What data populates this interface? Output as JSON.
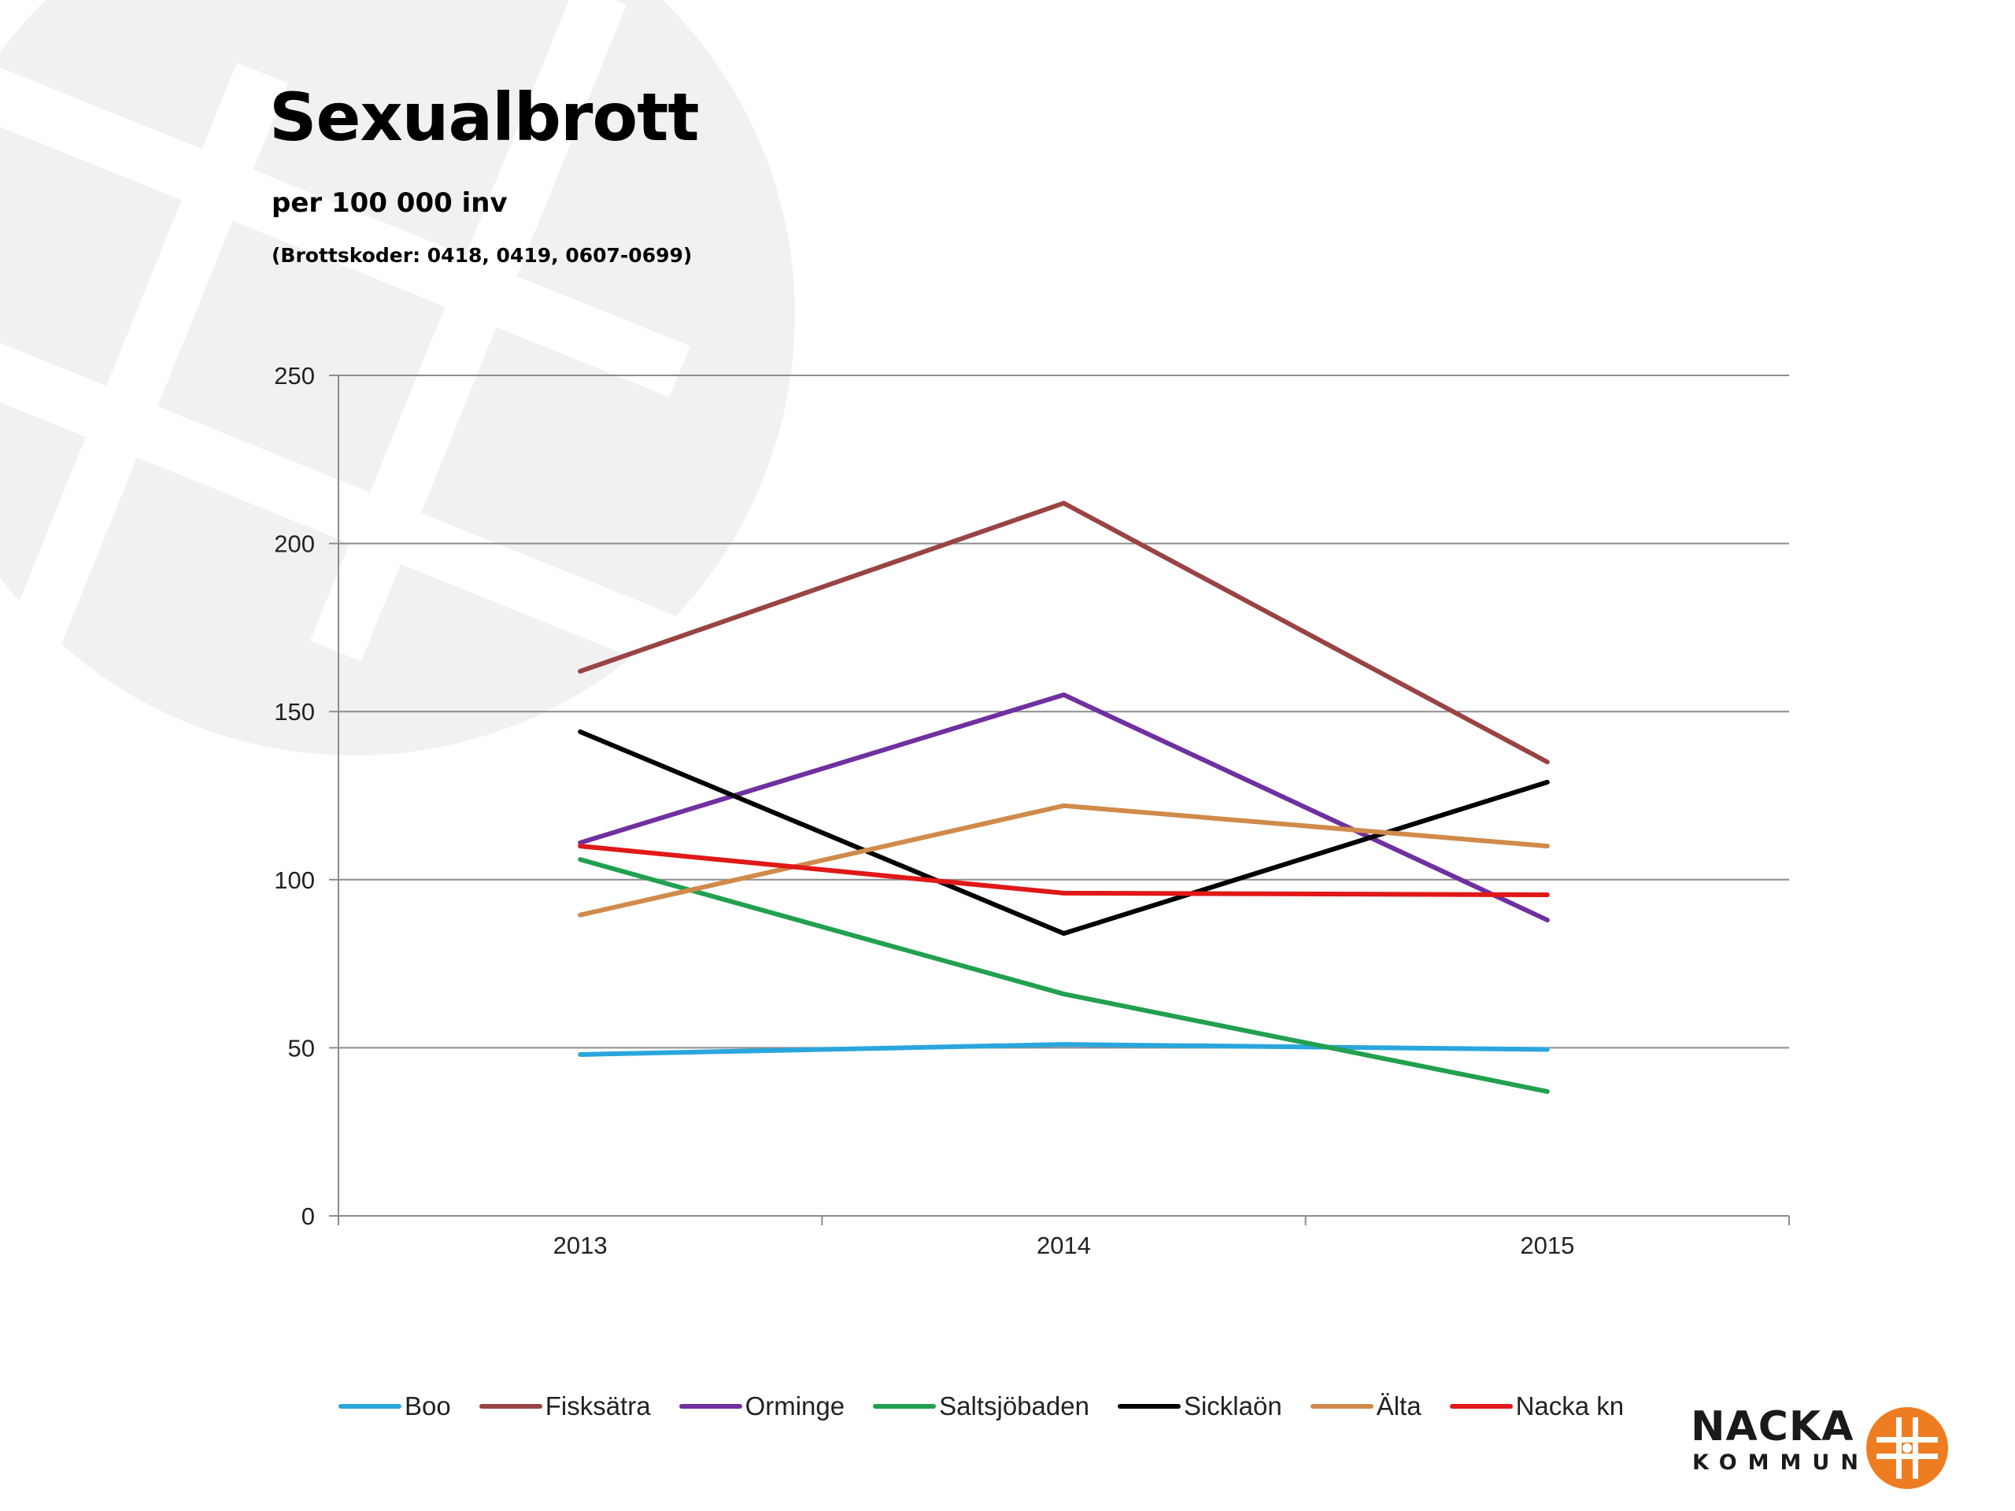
{
  "header": {
    "title": "Sexualbrott",
    "subtitle": "per 100 000 inv",
    "note": "(Brottskoder: 0418, 0419, 0607-0699)"
  },
  "logo": {
    "name": "NACKA",
    "sub": "KOMMUN",
    "icon": "nacka-emblem-icon"
  },
  "colors": {
    "Boo": "#2aa6dd",
    "Fisksätra": "#994444",
    "Orminge": "#7030a0",
    "Saltsjöbaden": "#22a050",
    "Sicklaön": "#000000",
    "Älta": "#d08a4a",
    "Nacka kn": "#e01818"
  },
  "chart_data": {
    "type": "line",
    "title": "Sexualbrott",
    "subtitle": "per 100 000 inv",
    "x": [
      "2013",
      "2014",
      "2015"
    ],
    "ylim": [
      0,
      250
    ],
    "yticks": [
      0,
      50,
      100,
      150,
      200,
      250
    ],
    "grid": true,
    "legend": "bottom",
    "series": [
      {
        "name": "Boo",
        "values": [
          48,
          51,
          49.5
        ]
      },
      {
        "name": "Fisksätra",
        "values": [
          162,
          212,
          135
        ]
      },
      {
        "name": "Orminge",
        "values": [
          111,
          155,
          88
        ]
      },
      {
        "name": "Saltsjöbaden",
        "values": [
          106,
          66,
          37
        ]
      },
      {
        "name": "Sicklaön",
        "values": [
          144,
          84,
          129
        ]
      },
      {
        "name": "Älta",
        "values": [
          89.5,
          122,
          110
        ]
      },
      {
        "name": "Nacka kn",
        "values": [
          110,
          96,
          95.5
        ]
      }
    ]
  }
}
